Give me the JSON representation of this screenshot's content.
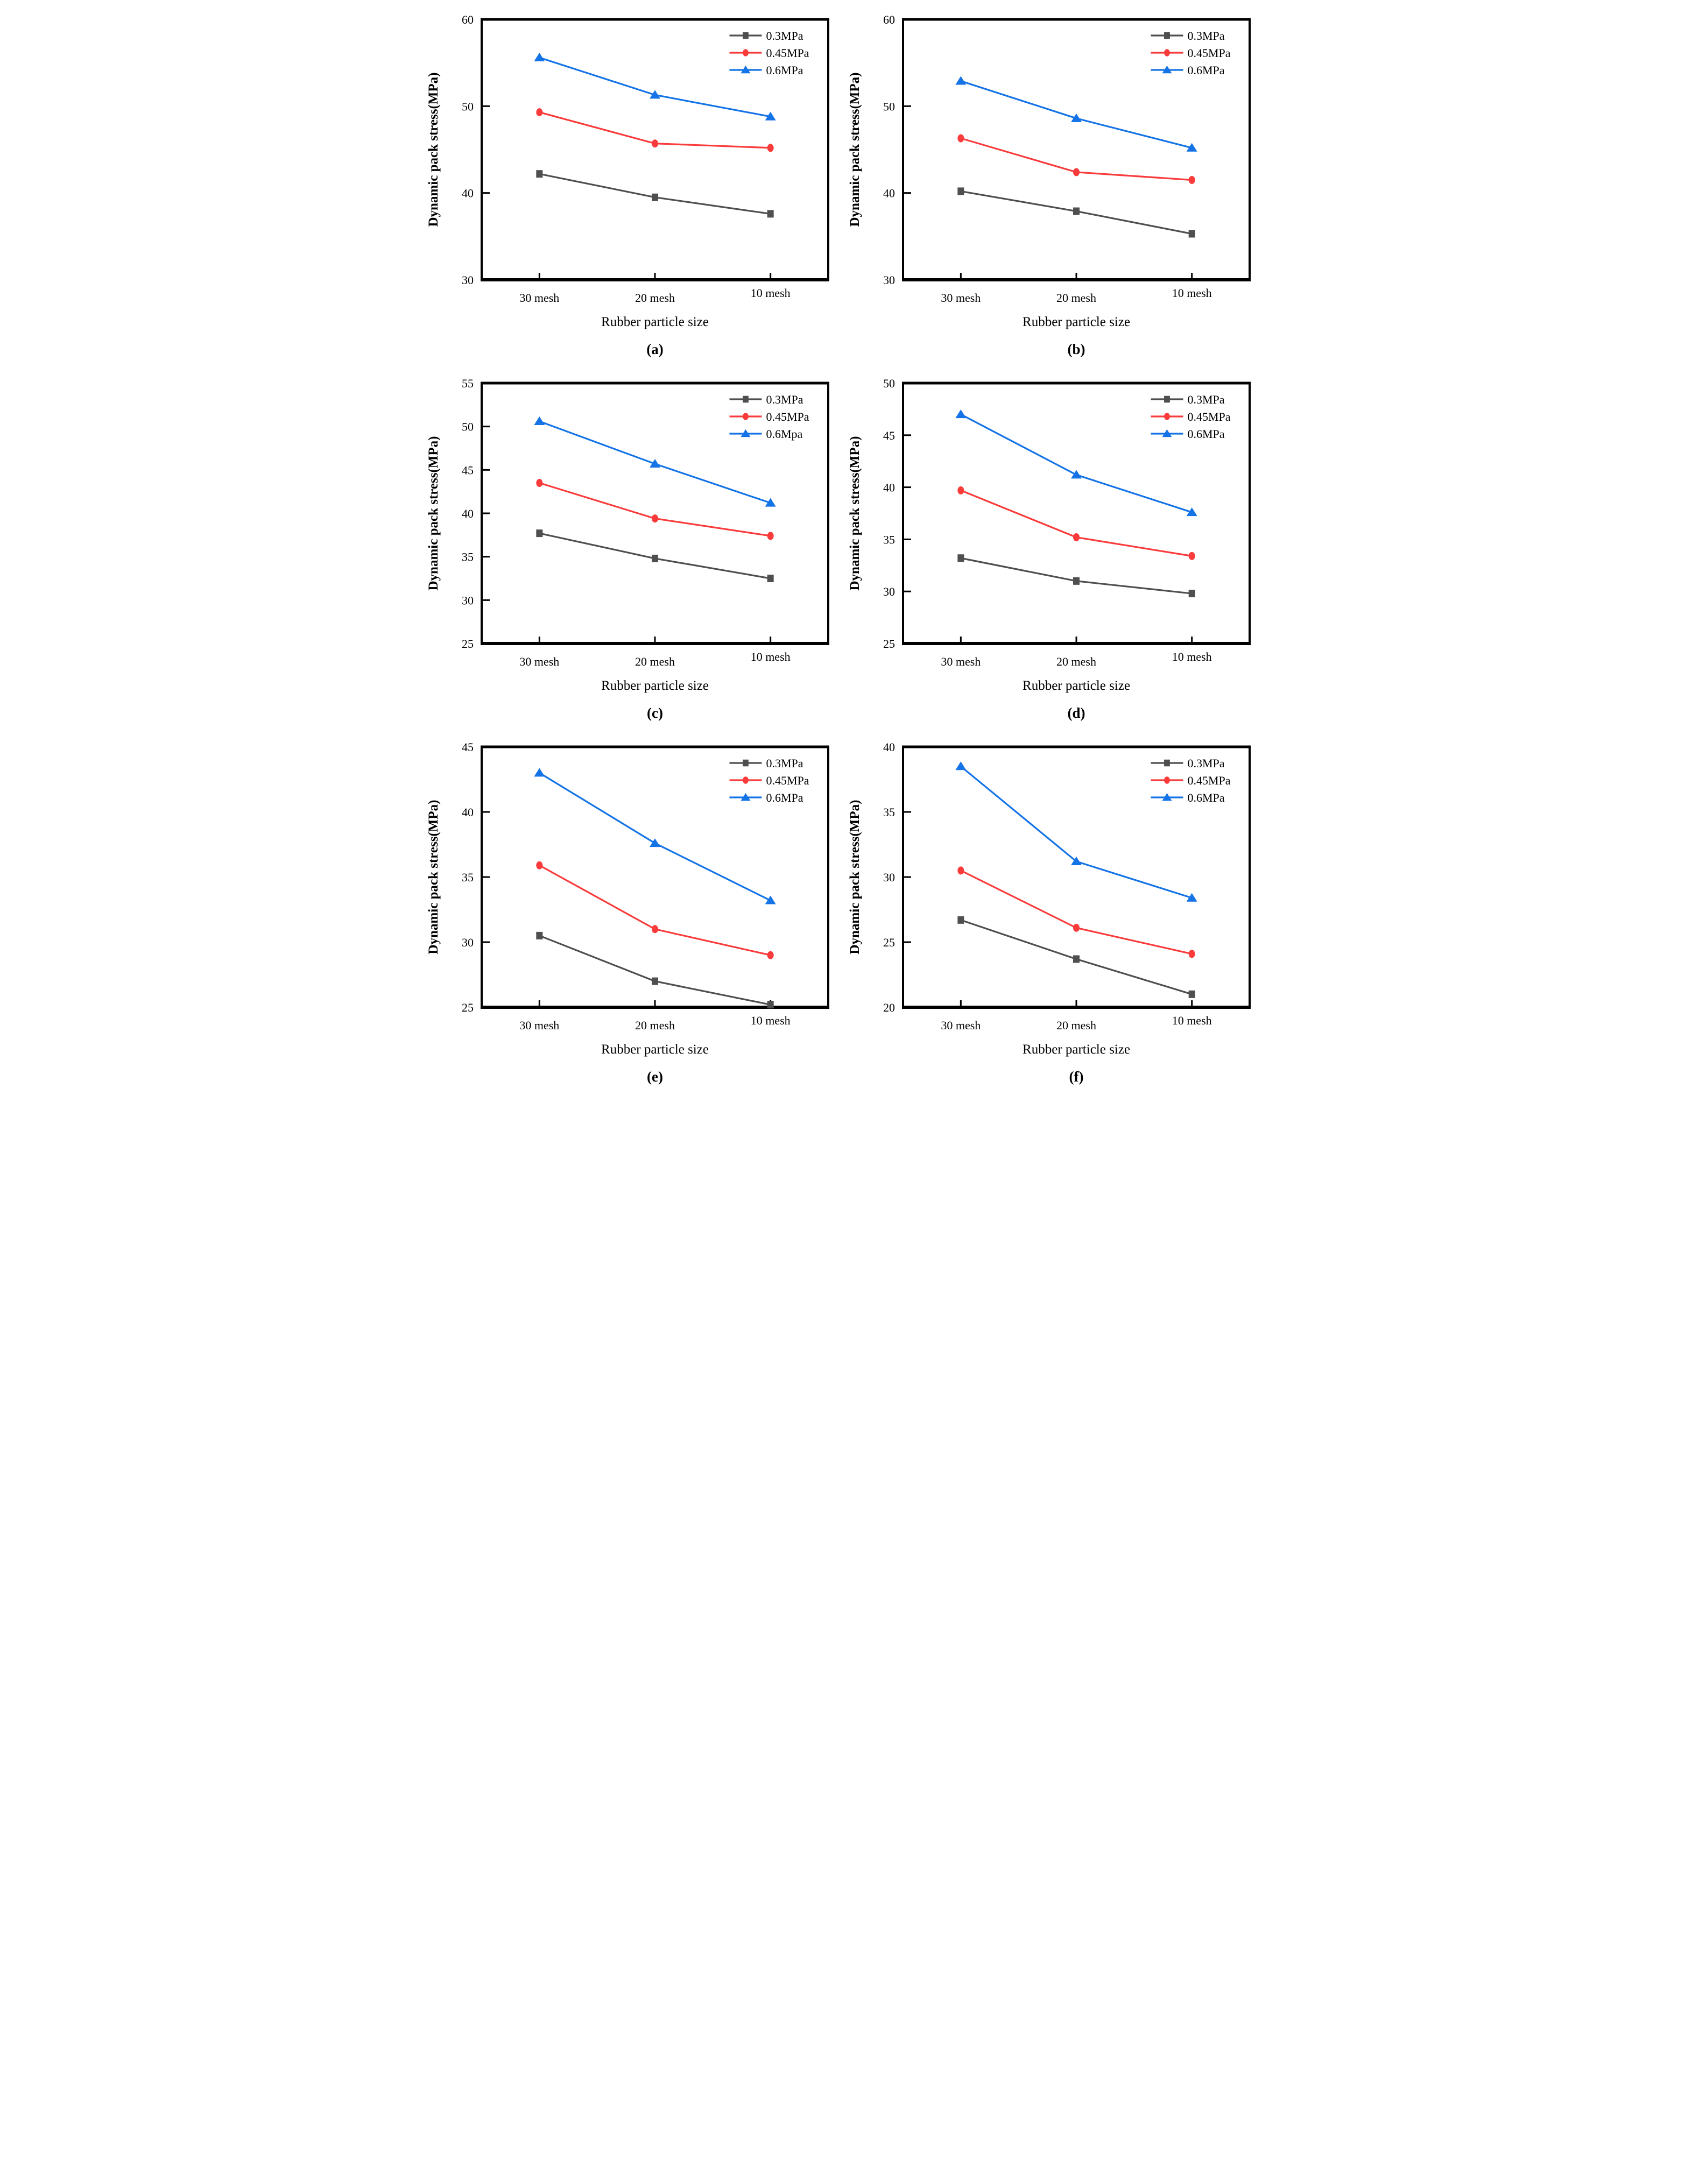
{
  "page": {
    "background": "#ffffff",
    "axis_color": "#000000",
    "text_color": "#000000"
  },
  "chart_data": [
    {
      "panel_label": "(a)",
      "type": "line",
      "xlabel": "Rubber particle size",
      "ylabel": "Dynamic pack stress(MPa)",
      "categories": [
        "30 mesh",
        "20 mesh",
        "10 mesh"
      ],
      "ylim": [
        30,
        60
      ],
      "yticks": [
        30,
        40,
        50,
        60
      ],
      "grid": false,
      "legend_position": "top-right",
      "series": [
        {
          "name": "0.3MPa",
          "marker": "square",
          "color": "#4f4f4f",
          "values": [
            42.2,
            39.5,
            37.6
          ]
        },
        {
          "name": "0.45MPa",
          "marker": "circle",
          "color": "#fa3b3b",
          "values": [
            49.3,
            45.7,
            45.2
          ]
        },
        {
          "name": "0.6MPa",
          "marker": "triangle",
          "color": "#1473e6",
          "values": [
            55.6,
            51.3,
            48.8
          ]
        }
      ]
    },
    {
      "panel_label": "(b)",
      "type": "line",
      "xlabel": "Rubber particle size",
      "ylabel": "Dynamic pack stress(MPa)",
      "categories": [
        "30 mesh",
        "20 mesh",
        "10 mesh"
      ],
      "ylim": [
        30,
        60
      ],
      "yticks": [
        30,
        40,
        50,
        60
      ],
      "grid": false,
      "legend_position": "top-right",
      "series": [
        {
          "name": "0.3MPa",
          "marker": "square",
          "color": "#4f4f4f",
          "values": [
            40.2,
            37.9,
            35.3
          ]
        },
        {
          "name": "0.45MPa",
          "marker": "circle",
          "color": "#fa3b3b",
          "values": [
            46.3,
            42.4,
            41.5
          ]
        },
        {
          "name": "0.6MPa",
          "marker": "triangle",
          "color": "#1473e6",
          "values": [
            52.9,
            48.6,
            45.2
          ]
        }
      ]
    },
    {
      "panel_label": "(c)",
      "type": "line",
      "xlabel": "Rubber particle size",
      "ylabel": "Dynamic pack stress(MPa)",
      "categories": [
        "30 mesh",
        "20 mesh",
        "10 mesh"
      ],
      "ylim": [
        25,
        55
      ],
      "yticks": [
        25,
        30,
        35,
        40,
        45,
        50,
        55
      ],
      "grid": false,
      "legend_position": "top-right",
      "series": [
        {
          "name": "0.3MPa",
          "marker": "square",
          "color": "#4f4f4f",
          "values": [
            37.7,
            34.8,
            32.5
          ]
        },
        {
          "name": "0.45MPa",
          "marker": "circle",
          "color": "#fa3b3b",
          "values": [
            43.5,
            39.4,
            37.4
          ]
        },
        {
          "name": "0.6Mpa",
          "marker": "triangle",
          "color": "#1473e6",
          "values": [
            50.6,
            45.7,
            41.2
          ]
        }
      ]
    },
    {
      "panel_label": "(d)",
      "type": "line",
      "xlabel": "Rubber particle size",
      "ylabel": "Dynamic pack stress(MPa)",
      "categories": [
        "30 mesh",
        "20 mesh",
        "10 mesh"
      ],
      "ylim": [
        25,
        50
      ],
      "yticks": [
        25,
        30,
        35,
        40,
        45,
        50
      ],
      "grid": false,
      "legend_position": "top-right",
      "series": [
        {
          "name": "0.3MPa",
          "marker": "square",
          "color": "#4f4f4f",
          "values": [
            33.2,
            31.0,
            29.8
          ]
        },
        {
          "name": "0.45MPa",
          "marker": "circle",
          "color": "#fa3b3b",
          "values": [
            39.7,
            35.2,
            33.4
          ]
        },
        {
          "name": "0.6MPa",
          "marker": "triangle",
          "color": "#1473e6",
          "values": [
            47.0,
            41.2,
            37.6
          ]
        }
      ]
    },
    {
      "panel_label": "(e)",
      "type": "line",
      "xlabel": "Rubber particle size",
      "ylabel": "Dynamic pack stress(MPa)",
      "categories": [
        "30 mesh",
        "20 mesh",
        "10 mesh"
      ],
      "ylim": [
        25,
        45
      ],
      "yticks": [
        25,
        30,
        35,
        40,
        45
      ],
      "grid": false,
      "legend_position": "top-right",
      "series": [
        {
          "name": "0.3MPa",
          "marker": "square",
          "color": "#4f4f4f",
          "values": [
            30.5,
            27.0,
            25.2
          ]
        },
        {
          "name": "0.45MPa",
          "marker": "circle",
          "color": "#fa3b3b",
          "values": [
            35.9,
            31.0,
            29.0
          ]
        },
        {
          "name": "0.6MPa",
          "marker": "triangle",
          "color": "#1473e6",
          "values": [
            43.0,
            37.6,
            33.2
          ]
        }
      ]
    },
    {
      "panel_label": "(f)",
      "type": "line",
      "xlabel": "Rubber particle size",
      "ylabel": "Dynamic pack stress(MPa)",
      "categories": [
        "30 mesh",
        "20 mesh",
        "10 mesh"
      ],
      "ylim": [
        20,
        40
      ],
      "yticks": [
        20,
        25,
        30,
        35,
        40
      ],
      "grid": false,
      "legend_position": "top-right",
      "series": [
        {
          "name": "0.3MPa",
          "marker": "square",
          "color": "#4f4f4f",
          "values": [
            26.7,
            23.7,
            21.0
          ]
        },
        {
          "name": "0.45MPa",
          "marker": "circle",
          "color": "#fa3b3b",
          "values": [
            30.5,
            26.1,
            24.1
          ]
        },
        {
          "name": "0.6MPa",
          "marker": "triangle",
          "color": "#1473e6",
          "values": [
            38.5,
            31.2,
            28.4
          ]
        }
      ]
    }
  ]
}
